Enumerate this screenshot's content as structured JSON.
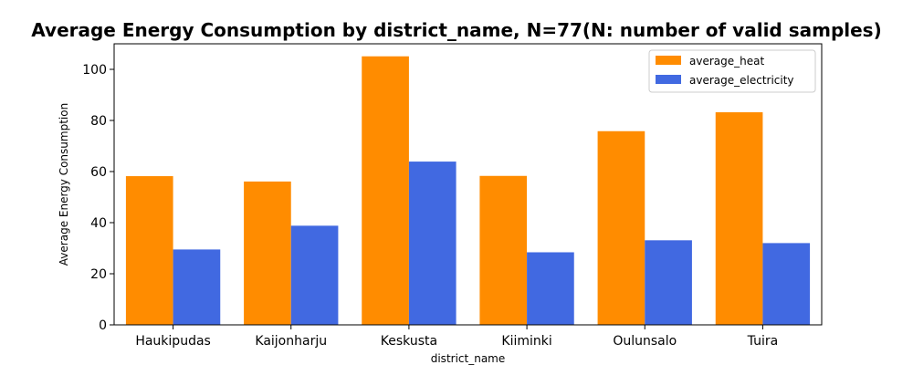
{
  "chart_data": {
    "type": "bar",
    "title": "Average Energy Consumption by district_name, N=77(N: number of valid samples)",
    "xlabel": "district_name",
    "ylabel": "Average Energy Consumption",
    "categories": [
      "Haukipudas",
      "Kaijonharju",
      "Keskusta",
      "Kiiminki",
      "Oulunsalo",
      "Tuira"
    ],
    "series": [
      {
        "name": "average_heat",
        "color": "#ff8c00",
        "values": [
          58.2,
          56.1,
          105.1,
          58.3,
          75.8,
          83.2
        ]
      },
      {
        "name": "average_electricity",
        "color": "#4169e1",
        "values": [
          29.5,
          38.8,
          63.9,
          28.4,
          33.1,
          32.0
        ]
      }
    ],
    "ylim": [
      0,
      110
    ],
    "yticks": [
      0,
      20,
      40,
      60,
      80,
      100
    ],
    "grid": false,
    "legend_position": "top-right"
  }
}
